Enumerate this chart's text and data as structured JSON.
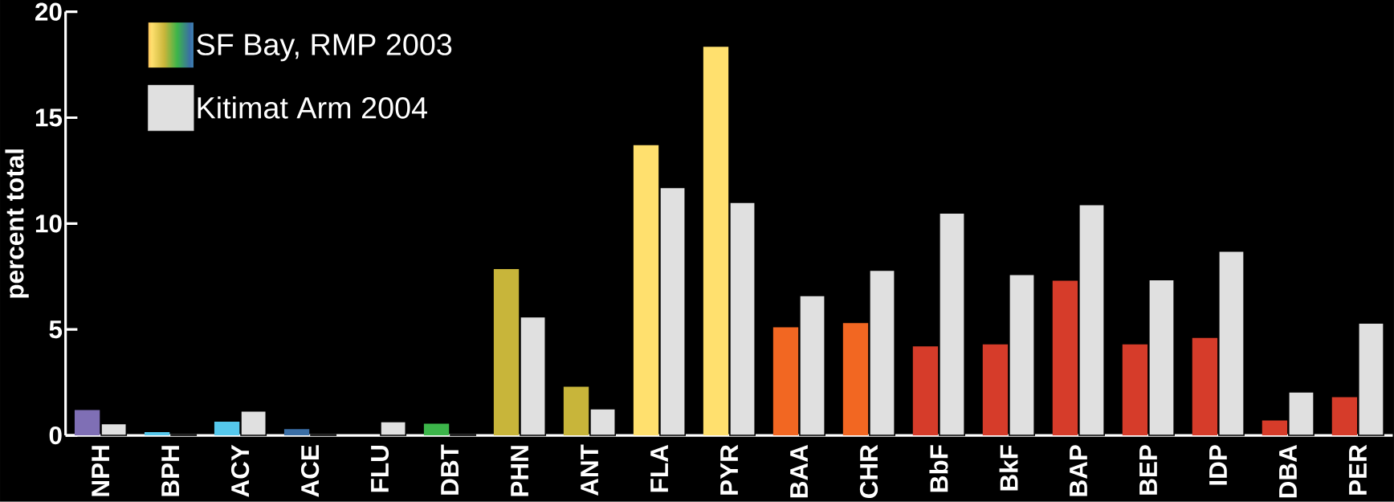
{
  "chart_data": {
    "type": "bar",
    "ylabel": "percent total",
    "categories": [
      "NPH",
      "BPH",
      "ACY",
      "ACE",
      "FLU",
      "DBT",
      "PHN",
      "ANT",
      "FLA",
      "PYR",
      "BAA",
      "CHR",
      "BbF",
      "BkF",
      "BAP",
      "BEP",
      "IDP",
      "DBA",
      "PER"
    ],
    "series": [
      {
        "name": "SF Bay, RMP 2003",
        "colors": [
          "#7f6fb5",
          "#55c8ec",
          "#55c8ec",
          "#3a6ea5",
          "#3cb54a",
          "#3cb54a",
          "#c8b53a",
          "#c8b53a",
          "#ffe06e",
          "#ffe06e",
          "#f26722",
          "#f26722",
          "#d63c2a",
          "#d63c2a",
          "#d63c2a",
          "#d63c2a",
          "#d63c2a",
          "#d63c2a",
          "#d63c2a"
        ],
        "values": [
          1.2,
          0.15,
          0.65,
          0.3,
          null,
          0.55,
          7.85,
          2.3,
          13.7,
          18.35,
          5.1,
          5.3,
          4.2,
          4.3,
          7.3,
          4.3,
          4.6,
          0.7,
          1.8
        ]
      },
      {
        "name": "Kitimat Arm 2004",
        "color": "#e0e0e0",
        "values": [
          0.55,
          0.03,
          1.15,
          0.03,
          0.65,
          0.03,
          5.6,
          1.25,
          11.7,
          11.0,
          6.6,
          7.8,
          10.5,
          7.6,
          10.9,
          7.35,
          8.7,
          2.05,
          5.3
        ]
      }
    ],
    "ylim": [
      0,
      20
    ],
    "yticks": [
      0,
      5,
      10,
      15,
      20
    ],
    "grid": false,
    "legend": "top left"
  }
}
